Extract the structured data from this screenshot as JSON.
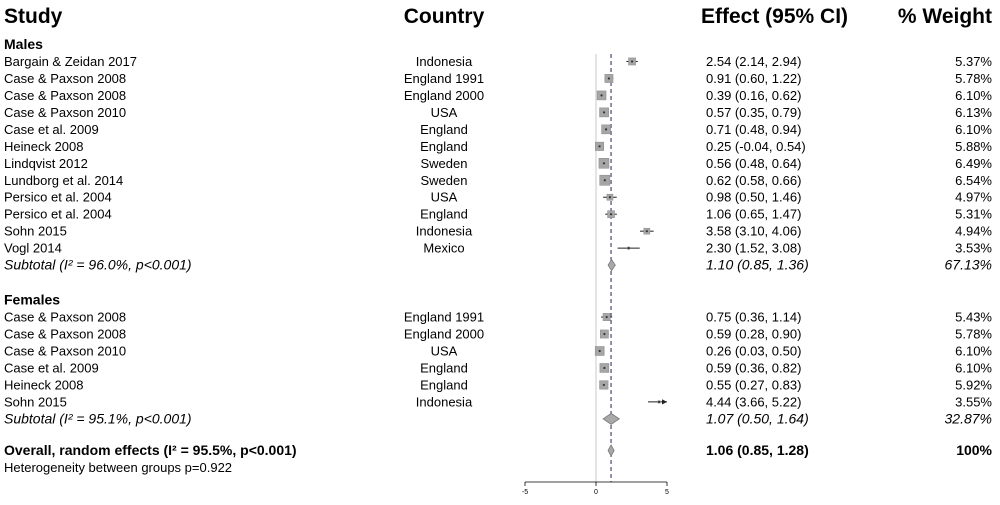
{
  "header": {
    "study": "Study",
    "country": "Country",
    "effect": "Effect (95% CI)",
    "weight": "% Weight"
  },
  "chart_data": {
    "type": "forest",
    "x_ticks": [
      -5,
      0,
      5
    ],
    "x_tick_labels": [
      "-5",
      "0",
      "5"
    ],
    "xlim": [
      -5,
      5
    ],
    "reference_line": 0,
    "overall_line": 1.06,
    "groups": [
      {
        "name": "Males",
        "studies": [
          {
            "study": "Bargain & Zeidan 2017",
            "country": "Indonesia",
            "effect": 2.54,
            "lo": 2.14,
            "hi": 2.94,
            "ci_text": "2.54 (2.14, 2.94)",
            "weight": 5.37,
            "weight_text": "5.37%"
          },
          {
            "study": "Case & Paxson 2008",
            "country": "England 1991",
            "effect": 0.91,
            "lo": 0.6,
            "hi": 1.22,
            "ci_text": "0.91 (0.60, 1.22)",
            "weight": 5.78,
            "weight_text": "5.78%"
          },
          {
            "study": "Case & Paxson 2008",
            "country": "England 2000",
            "effect": 0.39,
            "lo": 0.16,
            "hi": 0.62,
            "ci_text": "0.39 (0.16, 0.62)",
            "weight": 6.1,
            "weight_text": "6.10%"
          },
          {
            "study": "Case & Paxson 2010",
            "country": "USA",
            "effect": 0.57,
            "lo": 0.35,
            "hi": 0.79,
            "ci_text": "0.57 (0.35, 0.79)",
            "weight": 6.13,
            "weight_text": "6.13%"
          },
          {
            "study": "Case et al. 2009",
            "country": "England",
            "effect": 0.71,
            "lo": 0.48,
            "hi": 0.94,
            "ci_text": "0.71 (0.48, 0.94)",
            "weight": 6.1,
            "weight_text": "6.10%"
          },
          {
            "study": "Heineck 2008",
            "country": "England",
            "effect": 0.25,
            "lo": -0.04,
            "hi": 0.54,
            "ci_text": "0.25 (-0.04, 0.54)",
            "weight": 5.88,
            "weight_text": "5.88%"
          },
          {
            "study": "Lindqvist 2012",
            "country": "Sweden",
            "effect": 0.56,
            "lo": 0.48,
            "hi": 0.64,
            "ci_text": "0.56 (0.48, 0.64)",
            "weight": 6.49,
            "weight_text": "6.49%"
          },
          {
            "study": "Lundborg et al. 2014",
            "country": "Sweden",
            "effect": 0.62,
            "lo": 0.58,
            "hi": 0.66,
            "ci_text": "0.62 (0.58, 0.66)",
            "weight": 6.54,
            "weight_text": "6.54%"
          },
          {
            "study": "Persico et al. 2004",
            "country": "USA",
            "effect": 0.98,
            "lo": 0.5,
            "hi": 1.46,
            "ci_text": "0.98 (0.50, 1.46)",
            "weight": 4.97,
            "weight_text": "4.97%"
          },
          {
            "study": "Persico et al. 2004",
            "country": "England",
            "effect": 1.06,
            "lo": 0.65,
            "hi": 1.47,
            "ci_text": "1.06 (0.65, 1.47)",
            "weight": 5.31,
            "weight_text": "5.31%"
          },
          {
            "study": "Sohn 2015",
            "country": "Indonesia",
            "effect": 3.58,
            "lo": 3.1,
            "hi": 4.06,
            "ci_text": "3.58 (3.10, 4.06)",
            "weight": 4.94,
            "weight_text": "4.94%"
          },
          {
            "study": "Vogl 2014",
            "country": "Mexico",
            "effect": 2.3,
            "lo": 1.52,
            "hi": 3.08,
            "ci_text": "2.30 (1.52, 3.08)",
            "weight": 3.53,
            "weight_text": "3.53%"
          }
        ],
        "subtotal": {
          "label": "Subtotal (I²  = 96.0%, p<0.001)",
          "effect": 1.1,
          "lo": 0.85,
          "hi": 1.36,
          "ci_text": "1.10 (0.85, 1.36)",
          "weight_text": "67.13%"
        }
      },
      {
        "name": "Females",
        "studies": [
          {
            "study": "Case & Paxson 2008",
            "country": "England 1991",
            "effect": 0.75,
            "lo": 0.36,
            "hi": 1.14,
            "ci_text": "0.75 (0.36, 1.14)",
            "weight": 5.43,
            "weight_text": "5.43%"
          },
          {
            "study": "Case & Paxson 2008",
            "country": "England 2000",
            "effect": 0.59,
            "lo": 0.28,
            "hi": 0.9,
            "ci_text": "0.59 (0.28, 0.90)",
            "weight": 5.78,
            "weight_text": "5.78%"
          },
          {
            "study": "Case & Paxson 2010",
            "country": "USA",
            "effect": 0.26,
            "lo": 0.03,
            "hi": 0.5,
            "ci_text": "0.26 (0.03, 0.50)",
            "weight": 6.1,
            "weight_text": "6.10%"
          },
          {
            "study": "Case et al. 2009",
            "country": "England",
            "effect": 0.59,
            "lo": 0.36,
            "hi": 0.82,
            "ci_text": "0.59 (0.36, 0.82)",
            "weight": 6.1,
            "weight_text": "6.10%"
          },
          {
            "study": "Heineck 2008",
            "country": "England",
            "effect": 0.55,
            "lo": 0.27,
            "hi": 0.83,
            "ci_text": "0.55 (0.27, 0.83)",
            "weight": 5.92,
            "weight_text": "5.92%"
          },
          {
            "study": "Sohn 2015",
            "country": "Indonesia",
            "effect": 4.44,
            "lo": 3.66,
            "hi": 5.22,
            "ci_text": "4.44 (3.66, 5.22)",
            "weight": 3.55,
            "weight_text": "3.55%"
          }
        ],
        "subtotal": {
          "label": "Subtotal (I²  = 95.1%, p<0.001)",
          "effect": 1.07,
          "lo": 0.5,
          "hi": 1.64,
          "ci_text": "1.07 (0.50, 1.64)",
          "weight_text": "32.87%"
        }
      }
    ],
    "overall": {
      "label": "Overall, random effects (I²   = 95.5%, p<0.001)",
      "effect": 1.06,
      "lo": 0.85,
      "hi": 1.28,
      "ci_text": "1.06 (0.85, 1.28)",
      "weight_text": "100%"
    },
    "heterogeneity": "Heterogeneity between groups p=0.922"
  }
}
